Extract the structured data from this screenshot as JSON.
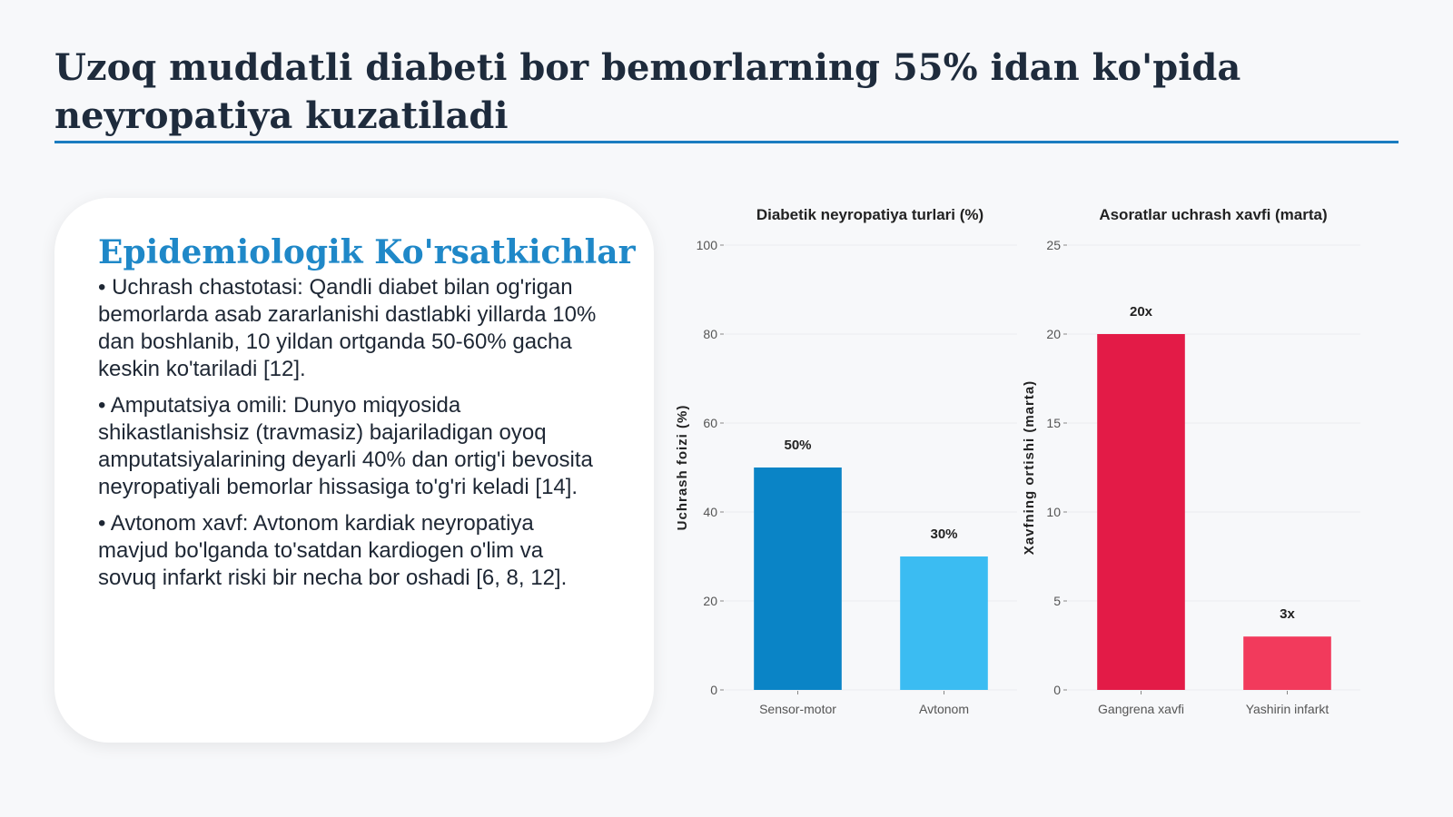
{
  "title": "Uzoq muddatli diabeti bor bemorlarning 55% idan ko'pida neyropatiya kuzatiladi",
  "card": {
    "heading": "Epidemiologik Ko'rsatkichlar",
    "bullets": [
      "• Uchrash chastotasi: Qandli diabet bilan og'rigan bemorlarda asab zararlanishi dastlabki yillarda 10% dan boshlanib, 10 yildan ortganda 50-60% gacha keskin ko'tariladi [12].",
      "• Amputatsiya omili: Dunyo miqyosida shikastlanishsiz (travmasiz) bajariladigan oyoq amputatsiyalarining deyarli 40% dan ortig'i bevosita neyropatiyali bemorlar hissasiga to'g'ri keladi [14].",
      "• Avtonom xavf: Avtonom kardiak neyropatiya mavjud bo'lganda to'satdan kardiogen o'lim va sovuq infarkt riski bir necha bor oshadi [6, 8, 12]."
    ]
  },
  "chart_data": [
    {
      "type": "bar",
      "title": "Diabetik neyropatiya turlari (%)",
      "xlabel": "",
      "ylabel": "Uchrash foizi (%)",
      "categories": [
        "Sensor-motor",
        "Avtonom"
      ],
      "values": [
        50,
        30
      ],
      "data_labels": [
        "50%",
        "30%"
      ],
      "colors": [
        "#0a84c6",
        "#3bbcf2"
      ],
      "ylim": [
        0,
        100
      ],
      "yticks": [
        0,
        20,
        40,
        60,
        80,
        100
      ],
      "grid": true
    },
    {
      "type": "bar",
      "title": "Asoratlar uchrash xavfi (marta)",
      "xlabel": "",
      "ylabel": "Xavfning ortishi (marta)",
      "categories": [
        "Gangrena xavfi",
        "Yashirin infarkt"
      ],
      "values": [
        20,
        3
      ],
      "data_labels": [
        "20x",
        "3x"
      ],
      "colors": [
        "#e31b47",
        "#f23a5c"
      ],
      "ylim": [
        0,
        25
      ],
      "yticks": [
        0,
        5,
        10,
        15,
        20,
        25
      ],
      "grid": true
    }
  ]
}
